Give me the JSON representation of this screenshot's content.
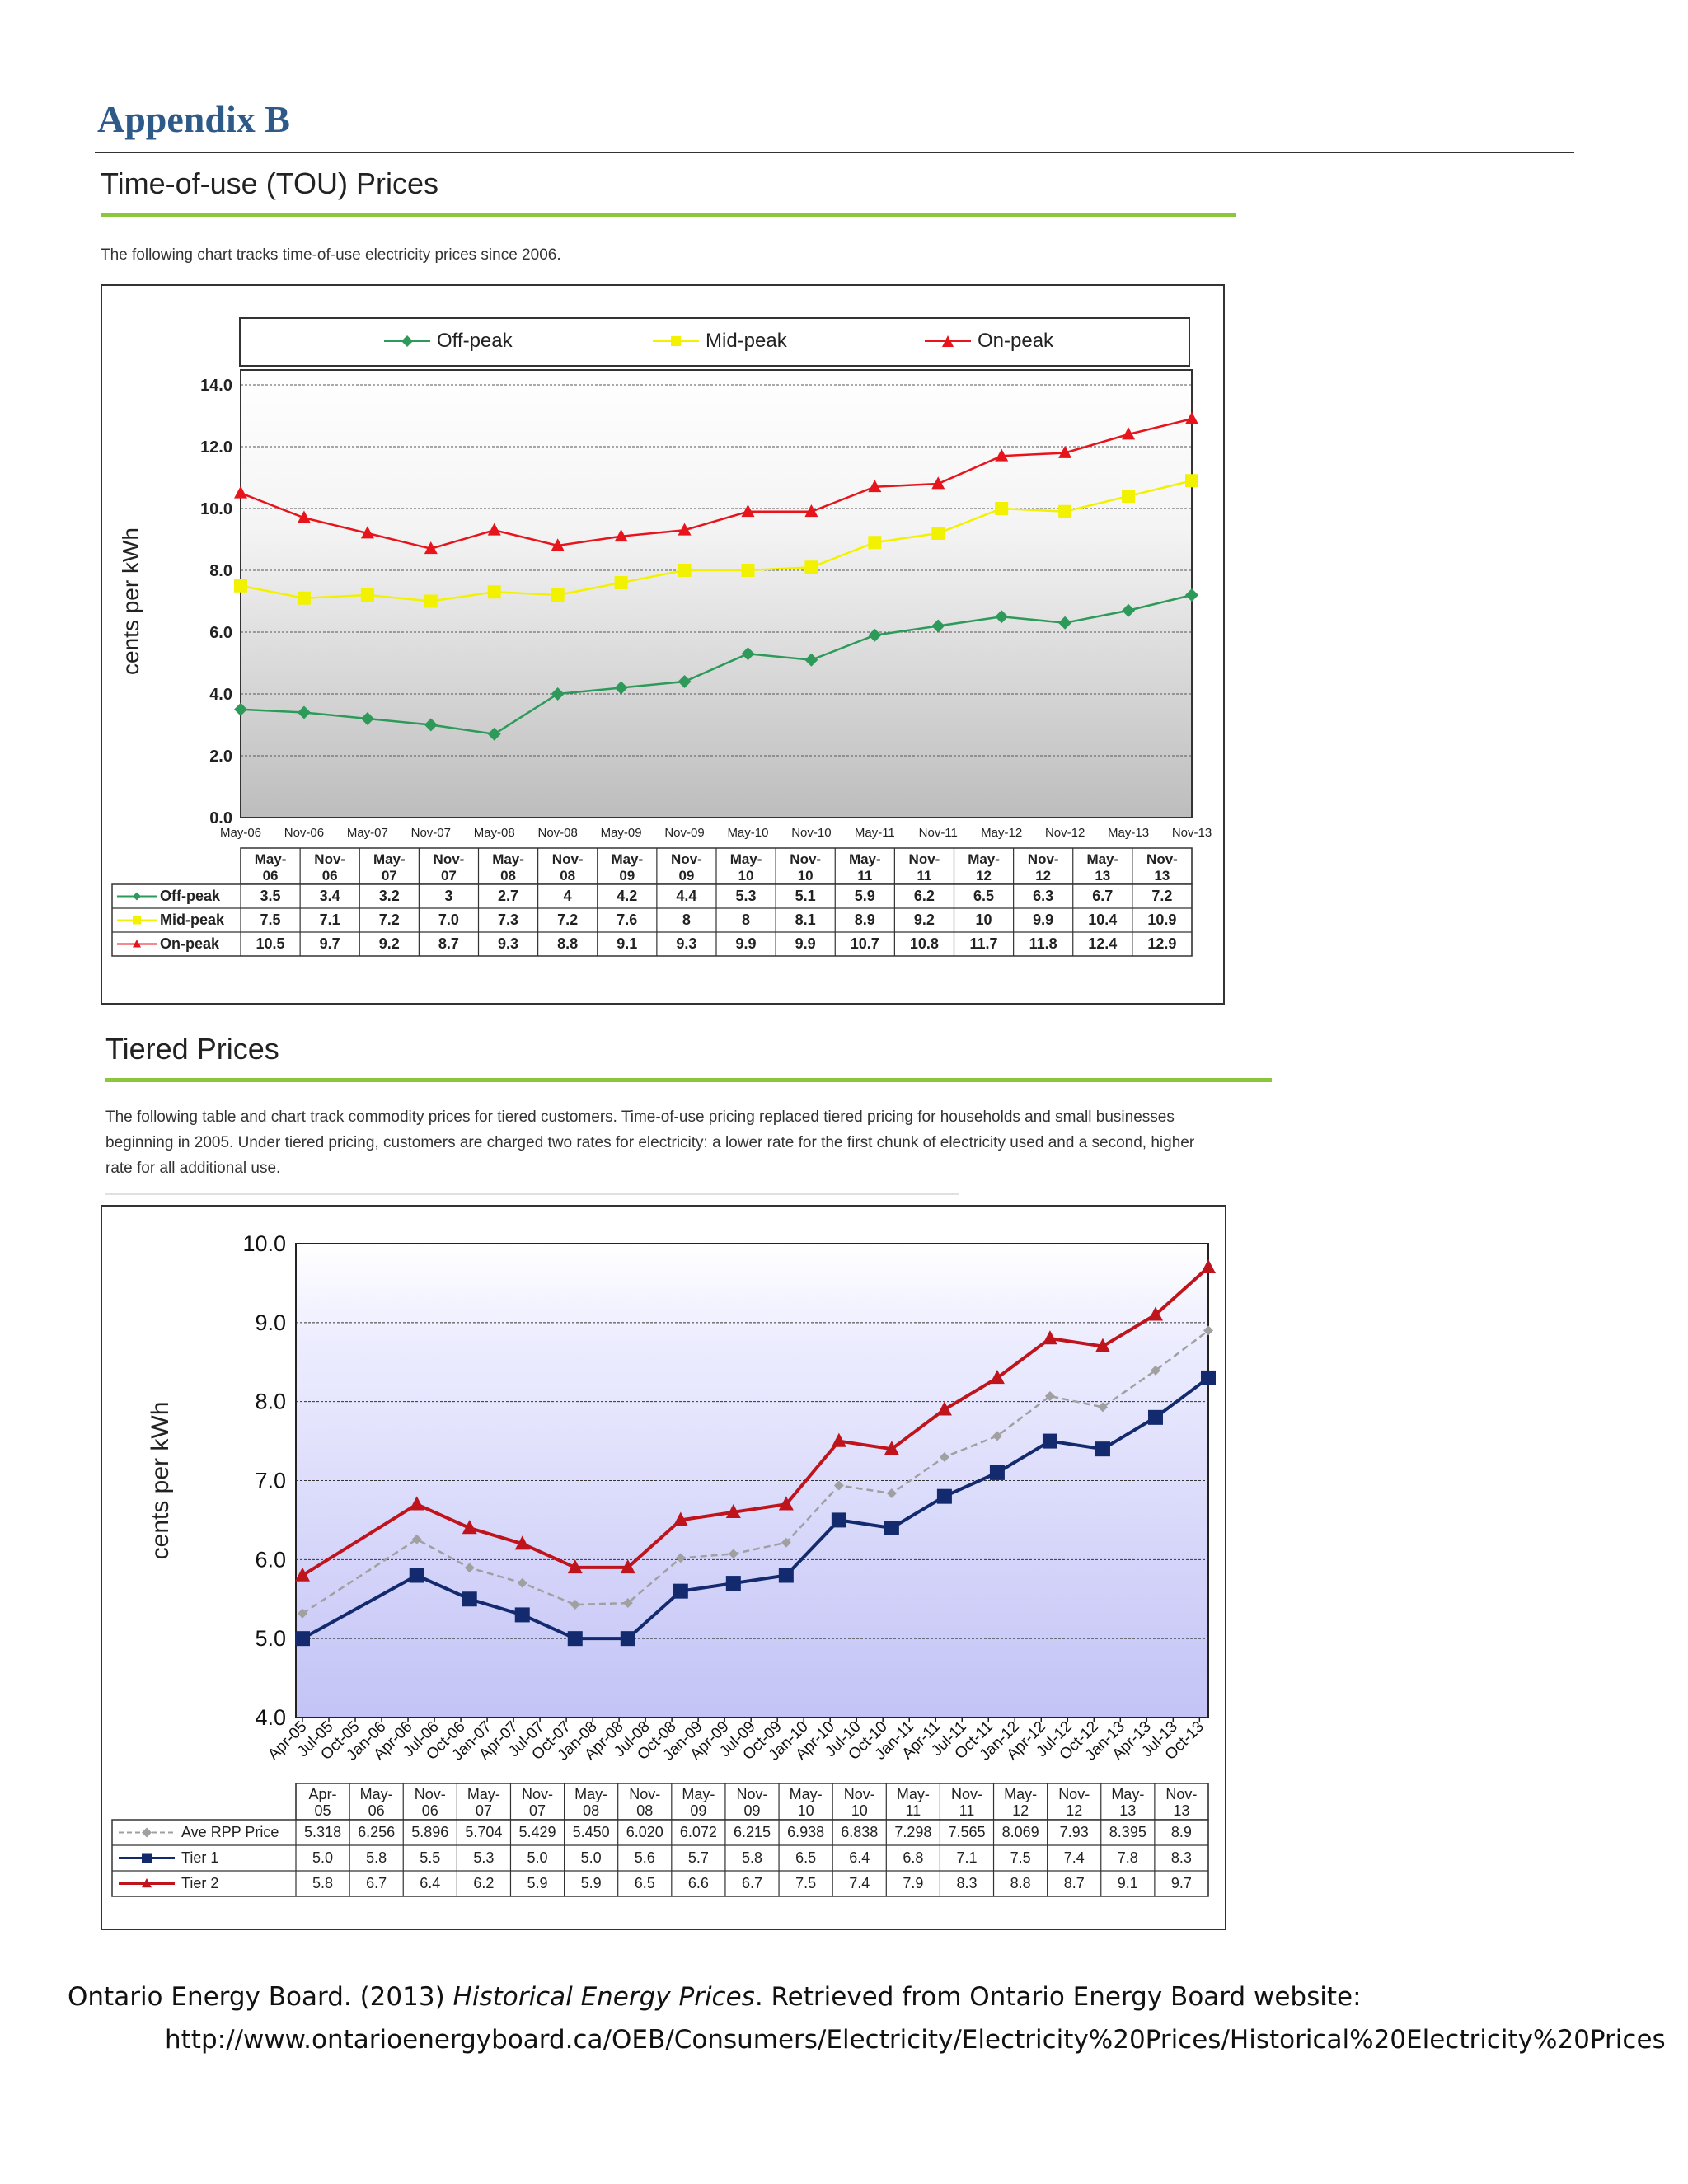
{
  "appendix_title": "Appendix B",
  "tou": {
    "title": "Time-of-use (TOU) Prices",
    "intro": "The following chart tracks time-of-use electricity prices since 2006."
  },
  "tiered": {
    "title": "Tiered Prices",
    "intro_lines": [
      "The following table and chart track commodity prices for tiered customers. Time-of-use pricing replaced tiered pricing for households and small businesses",
      "beginning in 2005. Under tiered pricing, customers are charged two rates for electricity: a lower rate for the first chunk of electricity used and a second, higher",
      "rate for all additional use."
    ]
  },
  "reference": {
    "prefix": "Ontario Energy Board. (2013) ",
    "title": "Historical Energy Prices",
    "suffix": ". Retrieved from Ontario Energy Board website:",
    "url": "http://www.ontarioenergyboard.ca/OEB/Consumers/Electricity/Electricity%20Prices/Historical%20Electricity%20Prices"
  },
  "chart_data": [
    {
      "type": "line",
      "ylabel": "cents per kWh",
      "ylim": [
        0,
        14
      ],
      "yticks": [
        "0.0",
        "2.0",
        "4.0",
        "6.0",
        "8.0",
        "10.0",
        "12.0",
        "14.0"
      ],
      "legend_position": "top",
      "grid": true,
      "x": [
        "May-06",
        "Nov-06",
        "May-07",
        "Nov-07",
        "May-08",
        "Nov-08",
        "May-09",
        "Nov-09",
        "May-10",
        "Nov-10",
        "May-11",
        "Nov-11",
        "May-12",
        "Nov-12",
        "May-13",
        "Nov-13"
      ],
      "table_headers": [
        [
          "May-",
          "06"
        ],
        [
          "Nov-",
          "06"
        ],
        [
          "May-",
          "07"
        ],
        [
          "Nov-",
          "07"
        ],
        [
          "May-",
          "08"
        ],
        [
          "Nov-",
          "08"
        ],
        [
          "May-",
          "09"
        ],
        [
          "Nov-",
          "09"
        ],
        [
          "May-",
          "10"
        ],
        [
          "Nov-",
          "10"
        ],
        [
          "May-",
          "11"
        ],
        [
          "Nov-",
          "11"
        ],
        [
          "May-",
          "12"
        ],
        [
          "Nov-",
          "12"
        ],
        [
          "May-",
          "13"
        ],
        [
          "Nov-",
          "13"
        ]
      ],
      "series": [
        {
          "name": "Off-peak",
          "color": "#2e9a5a",
          "marker": "diamond",
          "values": [
            3.5,
            3.4,
            3.2,
            3,
            2.7,
            4,
            4.2,
            4.4,
            5.3,
            5.1,
            5.9,
            6.2,
            6.5,
            6.3,
            6.7,
            7.2
          ],
          "labels": [
            "3.5",
            "3.4",
            "3.2",
            "3",
            "2.7",
            "4",
            "4.2",
            "4.4",
            "5.3",
            "5.1",
            "5.9",
            "6.2",
            "6.5",
            "6.3",
            "6.7",
            "7.2"
          ]
        },
        {
          "name": "Mid-peak",
          "color": "#f2f200",
          "marker": "square",
          "values": [
            7.5,
            7.1,
            7.2,
            7.0,
            7.3,
            7.2,
            7.6,
            8,
            8,
            8.1,
            8.9,
            9.2,
            10,
            9.9,
            10.4,
            10.9
          ],
          "labels": [
            "7.5",
            "7.1",
            "7.2",
            "7.0",
            "7.3",
            "7.2",
            "7.6",
            "8",
            "8",
            "8.1",
            "8.9",
            "9.2",
            "10",
            "9.9",
            "10.4",
            "10.9"
          ]
        },
        {
          "name": "On-peak",
          "color": "#e8141c",
          "marker": "triangle",
          "values": [
            10.5,
            9.7,
            9.2,
            8.7,
            9.3,
            8.8,
            9.1,
            9.3,
            9.9,
            9.9,
            10.7,
            10.8,
            11.7,
            11.8,
            12.4,
            12.9
          ],
          "labels": [
            "10.5",
            "9.7",
            "9.2",
            "8.7",
            "9.3",
            "8.8",
            "9.1",
            "9.3",
            "9.9",
            "9.9",
            "10.7",
            "10.8",
            "11.7",
            "11.8",
            "12.4",
            "12.9"
          ]
        }
      ]
    },
    {
      "type": "line",
      "ylabel": "cents per kWh",
      "ylim": [
        4,
        10
      ],
      "yticks": [
        "4.0",
        "5.0",
        "6.0",
        "7.0",
        "8.0",
        "9.0",
        "10.0"
      ],
      "grid": true,
      "x_axis_labels": [
        "Apr-05",
        "Jul-05",
        "Oct-05",
        "Jan-06",
        "Apr-06",
        "Jul-06",
        "Oct-06",
        "Jan-07",
        "Apr-07",
        "Jul-07",
        "Oct-07",
        "Jan-08",
        "Apr-08",
        "Jul-08",
        "Oct-08",
        "Jan-09",
        "Apr-09",
        "Jul-09",
        "Oct-09",
        "Jan-10",
        "Apr-10",
        "Jul-10",
        "Oct-10",
        "Jan-11",
        "Apr-11",
        "Jul-11",
        "Oct-11",
        "Jan-12",
        "Apr-12",
        "Jul-12",
        "Oct-12",
        "Jan-13",
        "Apr-13",
        "Jul-13",
        "Oct-13"
      ],
      "x": [
        "Apr-05",
        "May-06",
        "Nov-06",
        "May-07",
        "Nov-07",
        "May-08",
        "Nov-08",
        "May-09",
        "Nov-09",
        "May-10",
        "Nov-10",
        "May-11",
        "Nov-11",
        "May-12",
        "Nov-12",
        "May-13",
        "Nov-13"
      ],
      "x_month_index": [
        0,
        13,
        19,
        25,
        31,
        37,
        43,
        49,
        55,
        61,
        67,
        73,
        79,
        85,
        91,
        97,
        103
      ],
      "table_headers": [
        [
          "Apr-",
          "05"
        ],
        [
          "May-",
          "06"
        ],
        [
          "Nov-",
          "06"
        ],
        [
          "May-",
          "07"
        ],
        [
          "Nov-",
          "07"
        ],
        [
          "May-",
          "08"
        ],
        [
          "Nov-",
          "08"
        ],
        [
          "May-",
          "09"
        ],
        [
          "Nov-",
          "09"
        ],
        [
          "May-",
          "10"
        ],
        [
          "Nov-",
          "10"
        ],
        [
          "May-",
          "11"
        ],
        [
          "Nov-",
          "11"
        ],
        [
          "May-",
          "12"
        ],
        [
          "Nov-",
          "12"
        ],
        [
          "May-",
          "13"
        ],
        [
          "Nov-",
          "13"
        ]
      ],
      "series": [
        {
          "name": "Ave RPP Price",
          "color": "#a0a0a0",
          "marker": "diamond",
          "dashed": true,
          "values": [
            5.318,
            6.256,
            5.896,
            5.704,
            5.429,
            5.45,
            6.02,
            6.072,
            6.215,
            6.938,
            6.838,
            7.298,
            7.565,
            8.069,
            7.93,
            8.395,
            8.9
          ],
          "labels": [
            "5.318",
            "6.256",
            "5.896",
            "5.704",
            "5.429",
            "5.450",
            "6.020",
            "6.072",
            "6.215",
            "6.938",
            "6.838",
            "7.298",
            "7.565",
            "8.069",
            "7.93",
            "8.395",
            "8.9"
          ]
        },
        {
          "name": "Tier 1",
          "color": "#132a6e",
          "marker": "square",
          "values": [
            5.0,
            5.8,
            5.5,
            5.3,
            5.0,
            5.0,
            5.6,
            5.7,
            5.8,
            6.5,
            6.4,
            6.8,
            7.1,
            7.5,
            7.4,
            7.8,
            8.3
          ],
          "labels": [
            "5.0",
            "5.8",
            "5.5",
            "5.3",
            "5.0",
            "5.0",
            "5.6",
            "5.7",
            "5.8",
            "6.5",
            "6.4",
            "6.8",
            "7.1",
            "7.5",
            "7.4",
            "7.8",
            "8.3"
          ]
        },
        {
          "name": "Tier 2",
          "color": "#c0141c",
          "marker": "triangle",
          "values": [
            5.8,
            6.7,
            6.4,
            6.2,
            5.9,
            5.9,
            6.5,
            6.6,
            6.7,
            7.5,
            7.4,
            7.9,
            8.3,
            8.8,
            8.7,
            9.1,
            9.7
          ],
          "labels": [
            "5.8",
            "6.7",
            "6.4",
            "6.2",
            "5.9",
            "5.9",
            "6.5",
            "6.6",
            "6.7",
            "7.5",
            "7.4",
            "7.9",
            "8.3",
            "8.8",
            "8.7",
            "9.1",
            "9.7"
          ]
        }
      ]
    }
  ]
}
